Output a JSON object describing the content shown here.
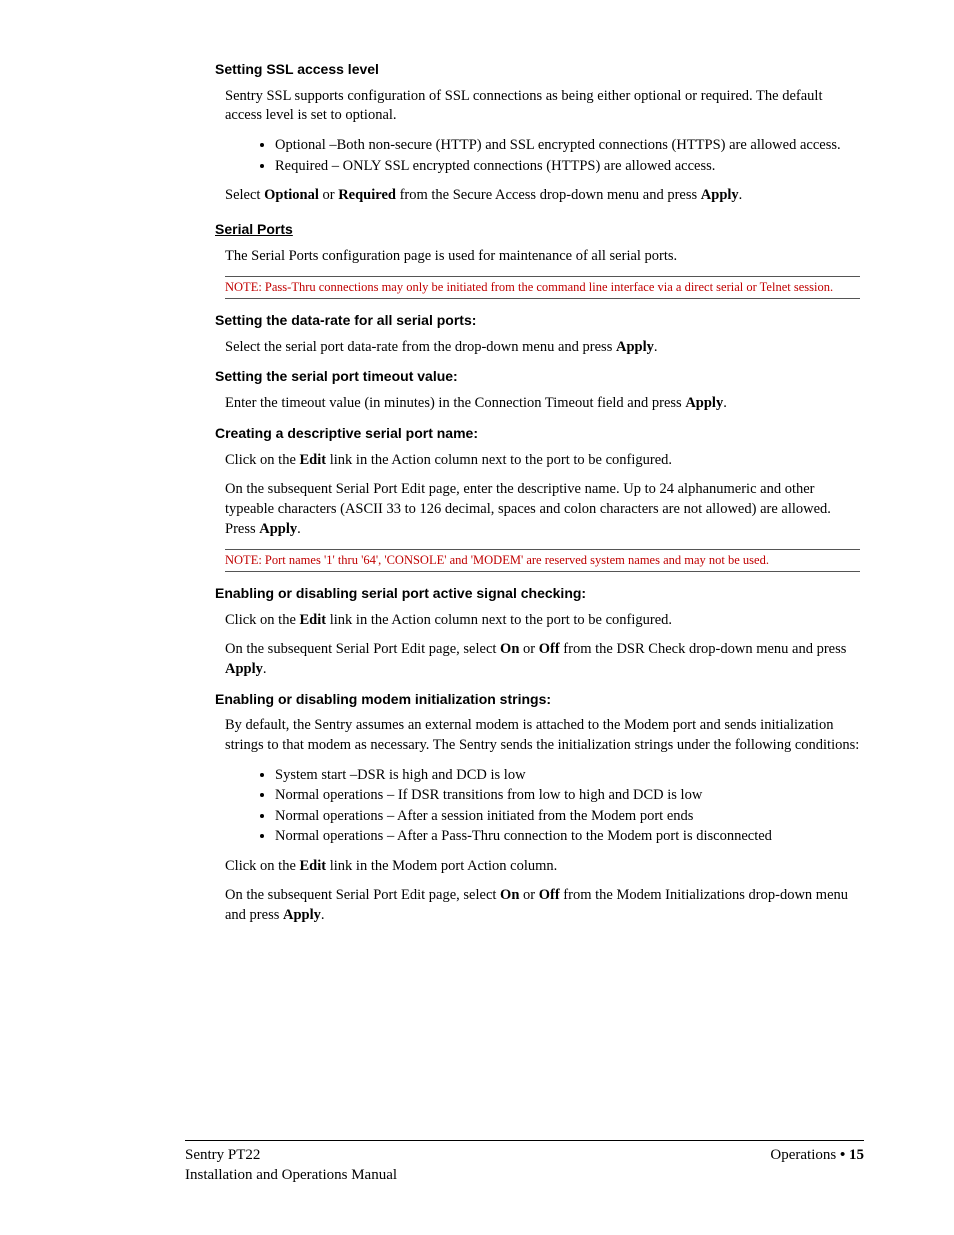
{
  "sections": {
    "ssl": {
      "title": "Setting SSL access level",
      "p1_a": "Sentry SSL supports configuration of SSL connections as being either optional or required.  The default access level is set to optional.",
      "bullets": [
        "Optional –Both non-secure (HTTP) and SSL encrypted connections (HTTPS) are allowed access.",
        "Required – ONLY SSL encrypted connections (HTTPS) are allowed access."
      ],
      "p2_pre": "Select ",
      "p2_b1": "Optional",
      "p2_mid": " or ",
      "p2_b2": "Required",
      "p2_mid2": " from the Secure Access drop-down menu and press ",
      "p2_b3": "Apply",
      "p2_post": "."
    },
    "serial": {
      "title": "Serial Ports",
      "p1": "The Serial Ports configuration page is used for maintenance of all serial ports.",
      "note": "NOTE:  Pass-Thru connections may only be initiated from the command line interface via a direct serial or Telnet session."
    },
    "datarate": {
      "title": "Setting the data-rate for all serial ports:",
      "p_pre": "Select the serial port data-rate from the drop-down menu and press ",
      "p_b": "Apply",
      "p_post": "."
    },
    "timeout": {
      "title": "Setting the serial port timeout value:",
      "p_pre": "Enter the timeout value (in minutes) in the Connection Timeout field and press ",
      "p_b": "Apply",
      "p_post": "."
    },
    "descname": {
      "title": "Creating a descriptive serial port name:",
      "p1_pre": "Click on the ",
      "p1_b": "Edit",
      "p1_post": " link in the Action column next to the port to be configured.",
      "p2_pre": "On the subsequent Serial Port Edit page, enter the descriptive name.  Up to 24 alphanumeric and other typeable characters (ASCII 33 to 126 decimal, spaces and colon characters are not allowed) are allowed.  Press ",
      "p2_b": "Apply",
      "p2_post": ".",
      "note": "NOTE: Port names '1' thru '64', 'CONSOLE' and 'MODEM' are reserved system names and may not be used."
    },
    "signal": {
      "title": "Enabling or disabling serial port active signal checking:",
      "p1_pre": "Click on the ",
      "p1_b": "Edit",
      "p1_post": " link in the Action column next to the port to be configured.",
      "p2_pre": "On the subsequent Serial Port Edit page, select ",
      "p2_b1": "On",
      "p2_mid": " or ",
      "p2_b2": "Off",
      "p2_mid2": " from the DSR Check drop-down menu and press ",
      "p2_b3": "Apply",
      "p2_post": "."
    },
    "modem": {
      "title": "Enabling or disabling modem initialization strings:",
      "p1": "By default, the Sentry assumes an external modem is attached to the Modem port and sends initialization strings to that modem as necessary.  The Sentry sends the initialization strings under the following conditions:",
      "bullets": [
        "System start –DSR is high and DCD is low",
        "Normal operations – If DSR transitions from low to high and DCD is low",
        "Normal operations – After a session initiated from the Modem port ends",
        "Normal operations – After a Pass-Thru connection to the Modem port is disconnected"
      ],
      "p2_pre": "Click on the ",
      "p2_b": "Edit",
      "p2_post": " link in the Modem port Action column.",
      "p3_pre": "On the subsequent Serial Port Edit page, select ",
      "p3_b1": "On",
      "p3_mid": " or ",
      "p3_b2": "Off",
      "p3_mid2": " from the Modem Initializations drop-down menu and press ",
      "p3_b3": "Apply",
      "p3_post": "."
    }
  },
  "footer": {
    "left1": "Sentry PT22",
    "left2": "Installation and Operations Manual",
    "right_label": "Operations  ",
    "right_bullet": "•",
    "right_page": " 15"
  },
  "colors": {
    "note_color": "#c00000",
    "text_color": "#000000",
    "background": "#ffffff",
    "rule": "#555555"
  },
  "fontsize": {
    "body": 14.5,
    "heading": 14,
    "note": 12.5,
    "footer": 15
  }
}
